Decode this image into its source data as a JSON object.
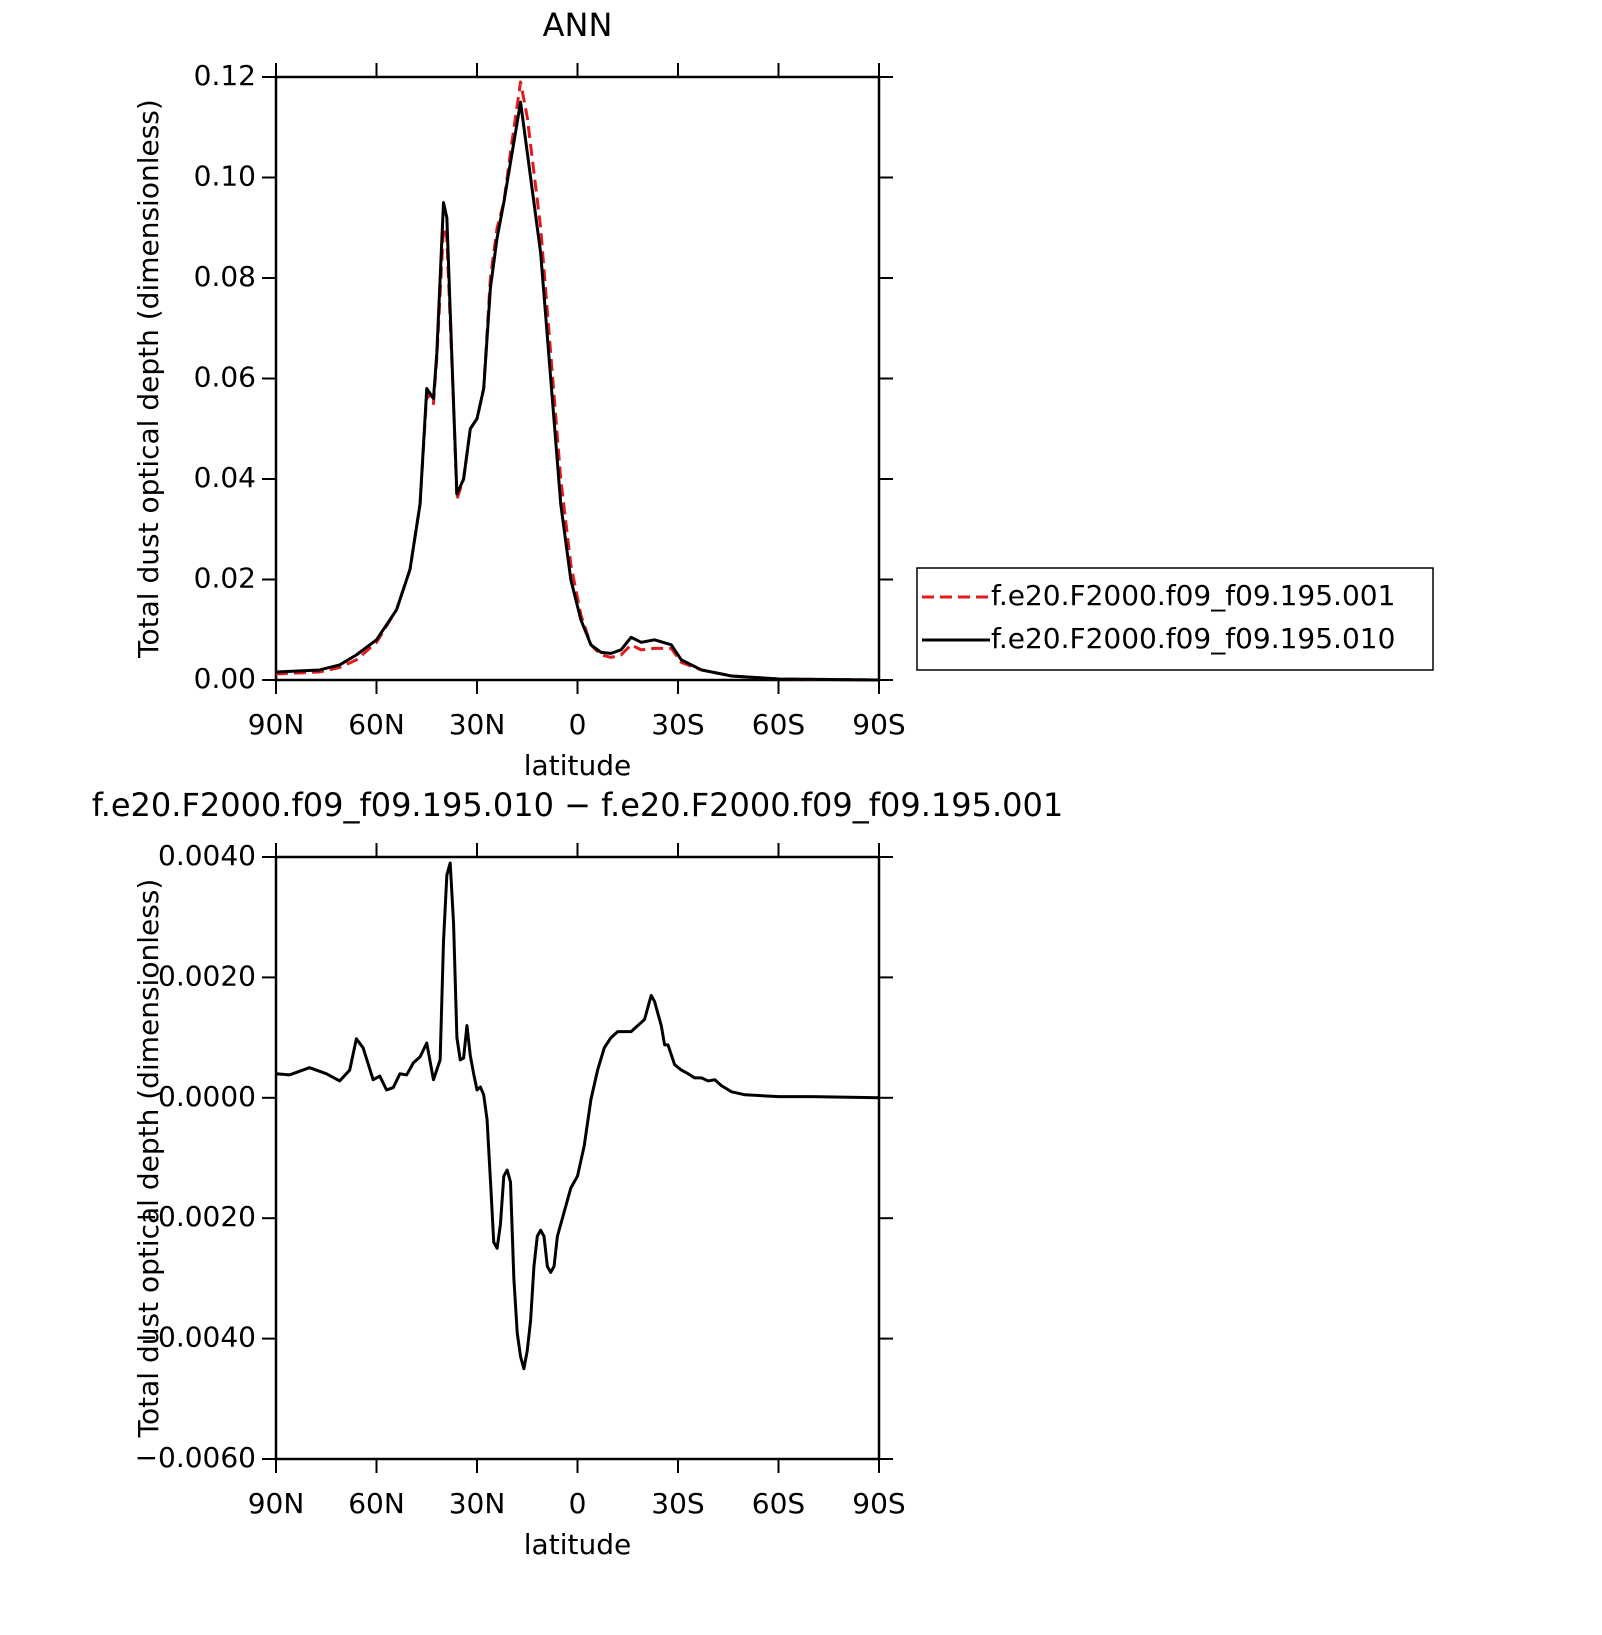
{
  "chart_data": [
    {
      "type": "line",
      "title": "ANN",
      "x_label": "latitude",
      "y_label": "Total dust optical depth (dimensionless)",
      "x": [
        90,
        77,
        71,
        66,
        60,
        54,
        50,
        47,
        45,
        43,
        42,
        40,
        39,
        37,
        36,
        34,
        32,
        30,
        28,
        26,
        24,
        22,
        20,
        17,
        15,
        11,
        8,
        5,
        2,
        -1,
        -4,
        -7,
        -10,
        -13,
        -16,
        -19,
        -23,
        -28,
        -31,
        -37,
        -46,
        -60,
        -90
      ],
      "series": [
        {
          "name": "f.e20.F2000.f09_f09.195.001",
          "color": "#e31a1c",
          "dash": true,
          "values": [
            0.0012,
            0.0016,
            0.0025,
            0.004,
            0.0075,
            0.014,
            0.022,
            0.035,
            0.057,
            0.055,
            0.064,
            0.09,
            0.088,
            0.055,
            0.036,
            0.04,
            0.05,
            0.052,
            0.058,
            0.08,
            0.09,
            0.095,
            0.105,
            0.119,
            0.112,
            0.09,
            0.065,
            0.04,
            0.023,
            0.013,
            0.007,
            0.005,
            0.0045,
            0.005,
            0.007,
            0.006,
            0.0063,
            0.0063,
            0.0035,
            0.002,
            0.0008,
            0.0002,
            0
          ]
        },
        {
          "name": "f.e20.F2000.f09_f09.195.010",
          "color": "#000000",
          "dash": false,
          "values": [
            0.0016,
            0.002,
            0.003,
            0.005,
            0.008,
            0.014,
            0.022,
            0.035,
            0.058,
            0.056,
            0.065,
            0.095,
            0.092,
            0.055,
            0.037,
            0.04,
            0.05,
            0.052,
            0.058,
            0.078,
            0.088,
            0.095,
            0.103,
            0.115,
            0.105,
            0.085,
            0.06,
            0.035,
            0.02,
            0.012,
            0.007,
            0.0055,
            0.0053,
            0.006,
            0.0085,
            0.0075,
            0.008,
            0.007,
            0.004,
            0.002,
            0.0008,
            0.0002,
            0
          ]
        }
      ],
      "xlim": [
        90,
        -90
      ],
      "xticks": [
        {
          "value": 90,
          "label": "90N"
        },
        {
          "value": 60,
          "label": "60N"
        },
        {
          "value": 30,
          "label": "30N"
        },
        0,
        {
          "value": -30,
          "label": "30S"
        },
        {
          "value": -60,
          "label": "60S"
        },
        {
          "value": -90,
          "label": "90S"
        }
      ],
      "ylim": [
        0,
        0.12
      ],
      "yticks": [
        {
          "value": 0,
          "label": "0.00"
        },
        {
          "value": 0.02,
          "label": "0.02"
        },
        {
          "value": 0.04,
          "label": "0.04"
        },
        {
          "value": 0.06,
          "label": "0.06"
        },
        {
          "value": 0.08,
          "label": "0.08"
        },
        {
          "value": 0.1,
          "label": "0.10"
        },
        {
          "value": 0.12,
          "label": "0.12"
        }
      ],
      "legend": "right"
    },
    {
      "type": "line",
      "title": "f.e20.F2000.f09_f09.195.010 − f.e20.F2000.f09_f09.195.001",
      "x_label": "latitude",
      "y_label": "Total dust optical depth (dimensionless)",
      "x": [
        90,
        86,
        80,
        75,
        71,
        68,
        66,
        64,
        61,
        59,
        57,
        55,
        53,
        51,
        49,
        47,
        45,
        43,
        41,
        40,
        39,
        38,
        37,
        36,
        35,
        34,
        33,
        32,
        31,
        30,
        29,
        28,
        27,
        26,
        25,
        24,
        23,
        22,
        21,
        20,
        19,
        18,
        17,
        16,
        15,
        14,
        13,
        12,
        11,
        10,
        9,
        8,
        7,
        6,
        4,
        2,
        0,
        -2,
        -4,
        -6,
        -8,
        -10,
        -12,
        -14,
        -16,
        -18,
        -20,
        -22,
        -23,
        -25,
        -26,
        -27,
        -29,
        -31,
        -33,
        -35,
        -37,
        -39,
        -41,
        -43,
        -46,
        -50,
        -60,
        -70,
        -90
      ],
      "series": [
        {
          "color": "#000000",
          "dash": false,
          "values": [
            0.0004,
            0.00038,
            0.0005,
            0.0004,
            0.00028,
            0.00046,
            0.00098,
            0.00083,
            0.0003,
            0.00036,
            0.00013,
            0.00017,
            0.0004,
            0.00038,
            0.00058,
            0.00068,
            0.00091,
            0.0003,
            0.00063,
            0.0026,
            0.0037,
            0.0039,
            0.0029,
            0.001,
            0.00063,
            0.00066,
            0.0012,
            0.0007,
            0.0004,
            0.00013,
            0.00018,
            5e-05,
            -0.00036,
            -0.00136,
            -0.0024,
            -0.0025,
            -0.0021,
            -0.0013,
            -0.0012,
            -0.0014,
            -0.003,
            -0.0039,
            -0.0043,
            -0.0045,
            -0.0042,
            -0.0037,
            -0.0028,
            -0.0023,
            -0.0022,
            -0.0023,
            -0.0028,
            -0.0029,
            -0.0028,
            -0.0023,
            -0.0019,
            -0.0015,
            -0.0013,
            -0.0008,
            -3e-05,
            0.00046,
            0.00083,
            0.001,
            0.0011,
            0.0011,
            0.0011,
            0.0012,
            0.0013,
            0.0017,
            0.0016,
            0.0012,
            0.00088,
            0.00088,
            0.00055,
            0.00046,
            0.0004,
            0.00033,
            0.00033,
            0.00028,
            0.0003,
            0.0002,
            0.0001,
            5e-05,
            2e-05,
            2e-05,
            0
          ]
        }
      ],
      "xlim": [
        90,
        -90
      ],
      "xticks": [
        {
          "value": 90,
          "label": "90N"
        },
        {
          "value": 60,
          "label": "60N"
        },
        {
          "value": 30,
          "label": "30N"
        },
        0,
        {
          "value": -30,
          "label": "30S"
        },
        {
          "value": -60,
          "label": "60S"
        },
        {
          "value": -90,
          "label": "90S"
        }
      ],
      "ylim": [
        -0.006,
        0.004
      ],
      "yticks": [
        {
          "value": -0.006,
          "label": "−0.0060"
        },
        {
          "value": -0.004,
          "label": "−0.0040"
        },
        {
          "value": -0.002,
          "label": "−0.0020"
        },
        {
          "value": 0,
          "label": "0.0000"
        },
        {
          "value": 0.002,
          "label": "0.0020"
        },
        {
          "value": 0.004,
          "label": "0.0040"
        }
      ]
    }
  ]
}
